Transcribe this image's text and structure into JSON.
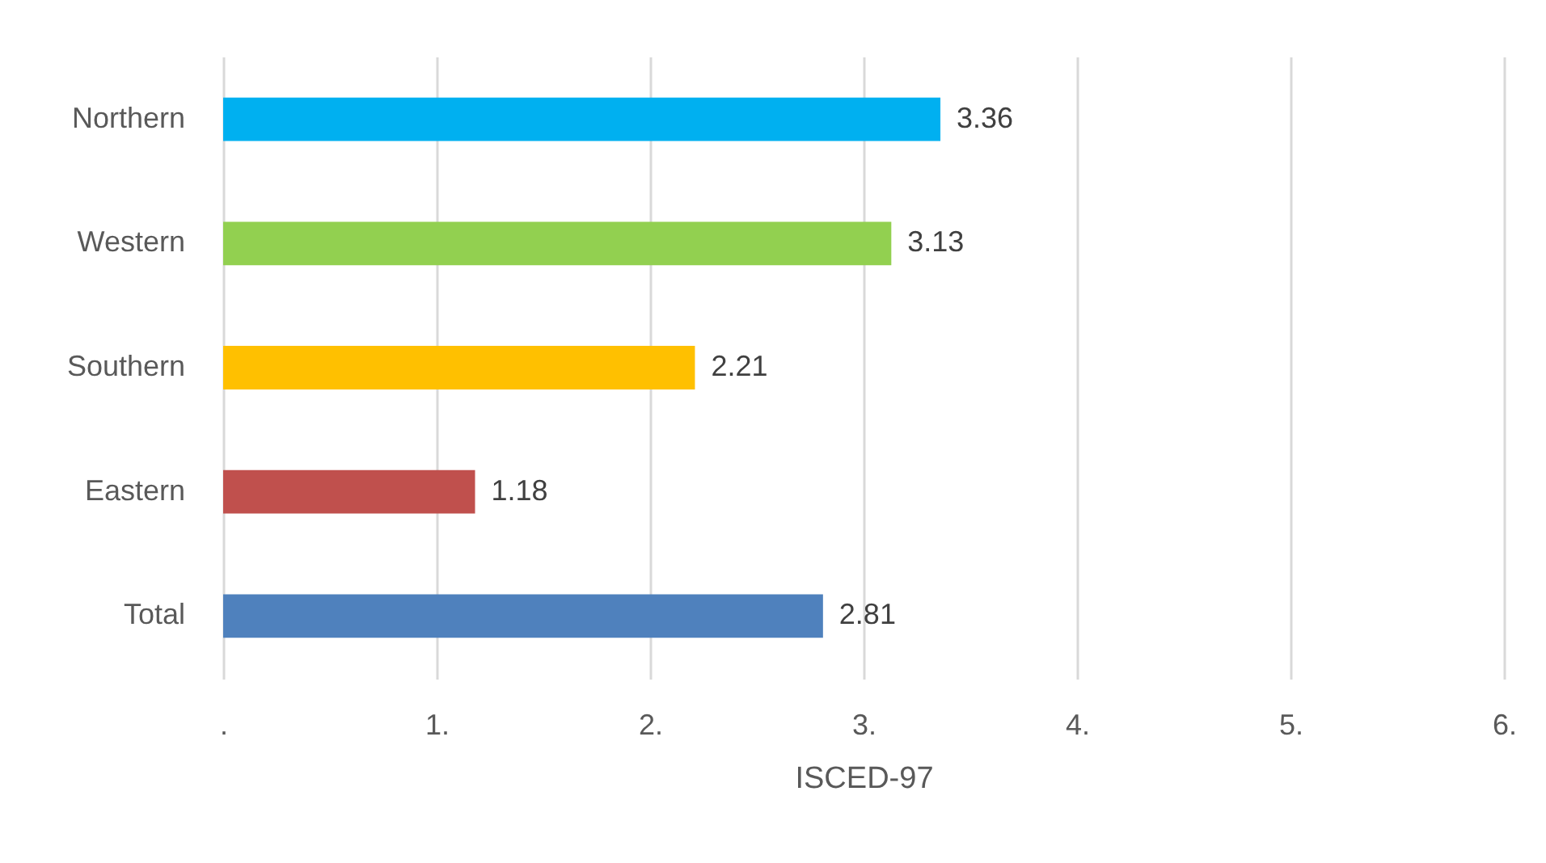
{
  "chart_data": {
    "type": "bar",
    "orientation": "horizontal",
    "xlabel": "ISCED-97",
    "categories": [
      "Northern",
      "Western",
      "Southern",
      "Eastern",
      "Total"
    ],
    "values": [
      3.36,
      3.13,
      2.21,
      1.18,
      2.81
    ],
    "colors": [
      "#00b0f0",
      "#92d050",
      "#ffc000",
      "#c0504d",
      "#4f81bd"
    ],
    "xlim": [
      0,
      6
    ],
    "xticks": [
      {
        "value": 0,
        "label": "."
      },
      {
        "value": 1,
        "label": "1."
      },
      {
        "value": 2,
        "label": "2."
      },
      {
        "value": 3,
        "label": "3."
      },
      {
        "value": 4,
        "label": "4."
      },
      {
        "value": 5,
        "label": "5."
      },
      {
        "value": 6,
        "label": "6."
      }
    ],
    "grid": "x",
    "data_labels": true,
    "legend": false
  }
}
